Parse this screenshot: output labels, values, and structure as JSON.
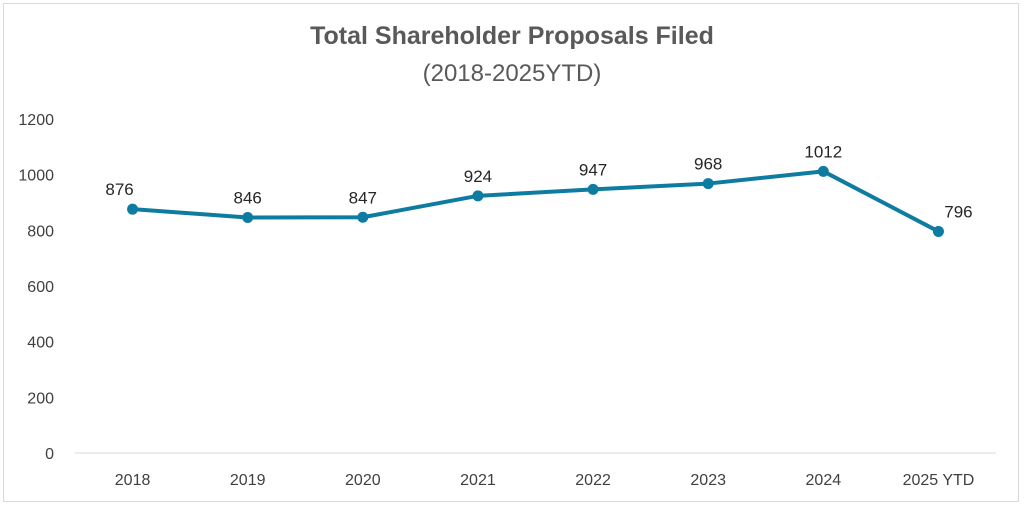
{
  "chart_data": {
    "type": "line",
    "title": "Total Shareholder Proposals Filed",
    "subtitle": "(2018-2025YTD)",
    "categories": [
      "2018",
      "2019",
      "2020",
      "2021",
      "2022",
      "2023",
      "2024",
      "2025 YTD"
    ],
    "series": [
      {
        "values": [
          876,
          846,
          847,
          924,
          947,
          968,
          1012,
          796
        ]
      }
    ],
    "ylim": [
      0,
      1200
    ],
    "yticks": [
      0,
      200,
      400,
      600,
      800,
      1000,
      1200
    ],
    "grid": false,
    "data_labels": true,
    "legend": "none",
    "line_color": "#0E7CA0"
  }
}
